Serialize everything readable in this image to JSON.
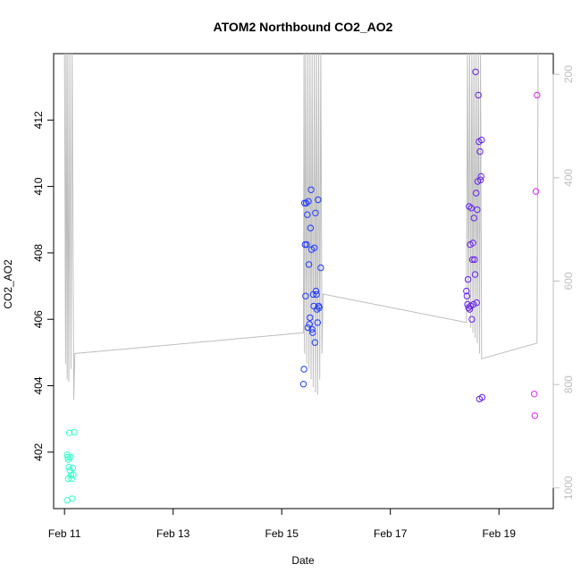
{
  "chart_data": {
    "type": "scatter",
    "title": "ATOM2 Northbound CO2_AO2",
    "xlabel": "Date",
    "ylabel": "CO2_AO2",
    "x_ticks": [
      {
        "x": 11,
        "label": "Feb 11"
      },
      {
        "x": 13,
        "label": "Feb 13"
      },
      {
        "x": 15,
        "label": "Feb 15"
      },
      {
        "x": 17,
        "label": "Feb 17"
      },
      {
        "x": 19,
        "label": "Feb 19"
      }
    ],
    "y_ticks": [
      402,
      404,
      406,
      408,
      410,
      412
    ],
    "y2_ticks": [
      200,
      400,
      600,
      800,
      1000
    ],
    "xlim": [
      10.8,
      20.0
    ],
    "ylim": [
      400.3,
      414.0
    ],
    "y2lim": [
      1040,
      160
    ],
    "y2_reversed": true,
    "grid": false,
    "series": [
      {
        "color": "#33ffcc",
        "points": [
          [
            11.05,
            401.92
          ],
          [
            11.06,
            401.85
          ],
          [
            11.07,
            401.78
          ],
          [
            11.08,
            401.55
          ],
          [
            11.09,
            402.58
          ],
          [
            11.1,
            401.45
          ],
          [
            11.11,
            401.85
          ],
          [
            11.12,
            401.3
          ],
          [
            11.13,
            401.2
          ],
          [
            11.14,
            400.6
          ],
          [
            11.15,
            401.52
          ],
          [
            11.16,
            401.32
          ],
          [
            11.18,
            402.6
          ],
          [
            11.07,
            401.2
          ],
          [
            11.05,
            400.55
          ]
        ]
      },
      {
        "color": "#1f3bff",
        "points": [
          [
            15.4,
            404.05
          ],
          [
            15.41,
            404.5
          ],
          [
            15.42,
            409.5
          ],
          [
            15.43,
            408.25
          ],
          [
            15.44,
            406.7
          ],
          [
            15.45,
            409.5
          ],
          [
            15.46,
            408.25
          ],
          [
            15.47,
            409.15
          ],
          [
            15.48,
            405.75
          ],
          [
            15.49,
            409.55
          ],
          [
            15.5,
            407.65
          ],
          [
            15.51,
            405.85
          ],
          [
            15.52,
            406.05
          ],
          [
            15.53,
            408.75
          ],
          [
            15.54,
            409.9
          ],
          [
            15.55,
            408.1
          ],
          [
            15.56,
            405.7
          ],
          [
            15.57,
            405.6
          ],
          [
            15.58,
            406.75
          ],
          [
            15.59,
            406.4
          ],
          [
            15.6,
            408.15
          ],
          [
            15.61,
            405.3
          ],
          [
            15.62,
            409.2
          ],
          [
            15.63,
            406.85
          ],
          [
            15.64,
            406.75
          ],
          [
            15.65,
            406.3
          ],
          [
            15.66,
            405.9
          ],
          [
            15.67,
            409.6
          ],
          [
            15.68,
            406.4
          ],
          [
            15.69,
            406.35
          ],
          [
            15.72,
            407.55
          ]
        ]
      },
      {
        "color": "#6622ee",
        "points": [
          [
            18.4,
            406.85
          ],
          [
            18.41,
            406.7
          ],
          [
            18.42,
            406.45
          ],
          [
            18.43,
            407.2
          ],
          [
            18.44,
            406.35
          ],
          [
            18.45,
            409.4
          ],
          [
            18.46,
            406.3
          ],
          [
            18.47,
            408.25
          ],
          [
            18.48,
            406.4
          ],
          [
            18.49,
            409.35
          ],
          [
            18.5,
            406.0
          ],
          [
            18.51,
            407.8
          ],
          [
            18.52,
            408.3
          ],
          [
            18.53,
            406.45
          ],
          [
            18.54,
            409.05
          ],
          [
            18.55,
            407.8
          ],
          [
            18.56,
            407.35
          ],
          [
            18.57,
            413.45
          ],
          [
            18.58,
            409.8
          ],
          [
            18.59,
            406.5
          ],
          [
            18.6,
            409.3
          ],
          [
            18.61,
            410.15
          ],
          [
            18.62,
            412.75
          ],
          [
            18.63,
            411.35
          ],
          [
            18.64,
            403.6
          ],
          [
            18.65,
            411.05
          ],
          [
            18.66,
            410.2
          ],
          [
            18.67,
            410.3
          ],
          [
            18.68,
            411.4
          ],
          [
            18.69,
            403.65
          ]
        ]
      },
      {
        "color": "#dd22ee",
        "points": [
          [
            19.65,
            403.75
          ],
          [
            19.66,
            403.1
          ],
          [
            19.68,
            409.85
          ],
          [
            19.7,
            412.75
          ]
        ]
      }
    ],
    "line_series": {
      "color": "#bebebe",
      "axis": "right",
      "points": [
        [
          11.0,
          155
        ],
        [
          11.02,
          760
        ],
        [
          11.03,
          155
        ],
        [
          11.05,
          790
        ],
        [
          11.06,
          155
        ],
        [
          11.08,
          795
        ],
        [
          11.1,
          155
        ],
        [
          11.12,
          770
        ],
        [
          11.14,
          155
        ],
        [
          11.17,
          830
        ],
        [
          11.19,
          740
        ],
        [
          15.4,
          700
        ],
        [
          15.41,
          155
        ],
        [
          15.42,
          740
        ],
        [
          15.44,
          155
        ],
        [
          15.46,
          760
        ],
        [
          15.48,
          155
        ],
        [
          15.5,
          770
        ],
        [
          15.52,
          155
        ],
        [
          15.54,
          790
        ],
        [
          15.56,
          155
        ],
        [
          15.58,
          805
        ],
        [
          15.6,
          155
        ],
        [
          15.62,
          815
        ],
        [
          15.64,
          155
        ],
        [
          15.66,
          820
        ],
        [
          15.68,
          155
        ],
        [
          15.7,
          790
        ],
        [
          15.72,
          155
        ],
        [
          15.74,
          740
        ],
        [
          15.76,
          625
        ],
        [
          18.4,
          680
        ],
        [
          18.42,
          155
        ],
        [
          18.44,
          660
        ],
        [
          18.46,
          155
        ],
        [
          18.48,
          690
        ],
        [
          18.5,
          155
        ],
        [
          18.52,
          700
        ],
        [
          18.54,
          155
        ],
        [
          18.56,
          710
        ],
        [
          18.58,
          155
        ],
        [
          18.6,
          720
        ],
        [
          18.62,
          155
        ],
        [
          18.64,
          740
        ],
        [
          18.66,
          155
        ],
        [
          18.68,
          750
        ],
        [
          19.7,
          720
        ],
        [
          19.72,
          155
        ]
      ]
    }
  }
}
